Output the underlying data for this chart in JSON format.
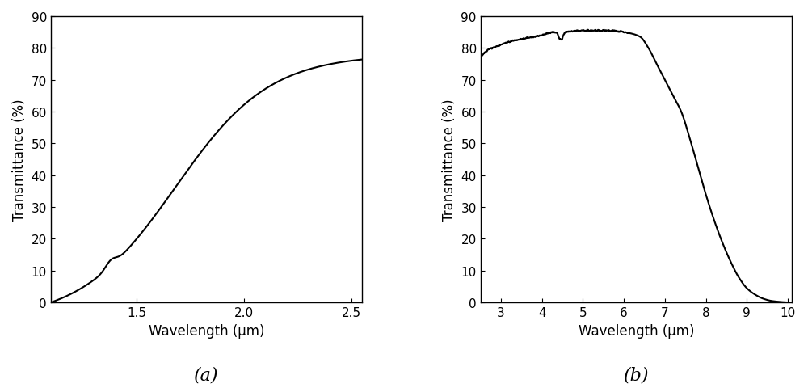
{
  "fig_width": 10.0,
  "fig_height": 4.81,
  "background_color": "#ffffff",
  "line_color": "#000000",
  "line_width": 1.5,
  "plot_a": {
    "xlabel": "Wavelength (μm)",
    "ylabel": "Transmittance (%)",
    "xlim": [
      1.1,
      2.55
    ],
    "ylim": [
      0,
      90
    ],
    "xticks": [
      1.5,
      2.0,
      2.5
    ],
    "yticks": [
      0,
      10,
      20,
      30,
      40,
      50,
      60,
      70,
      80,
      90
    ],
    "label": "(a)",
    "label_fontsize": 16
  },
  "plot_b": {
    "xlabel": "Wavelength (μm)",
    "ylabel": "Transmittance (%)",
    "xlim": [
      2.5,
      10.1
    ],
    "ylim": [
      0,
      90
    ],
    "xticks": [
      3,
      4,
      5,
      6,
      7,
      8,
      9,
      10
    ],
    "yticks": [
      0,
      10,
      20,
      30,
      40,
      50,
      60,
      70,
      80,
      90
    ],
    "label": "(b)",
    "label_fontsize": 16
  },
  "axis_label_fontsize": 12,
  "tick_fontsize": 11
}
